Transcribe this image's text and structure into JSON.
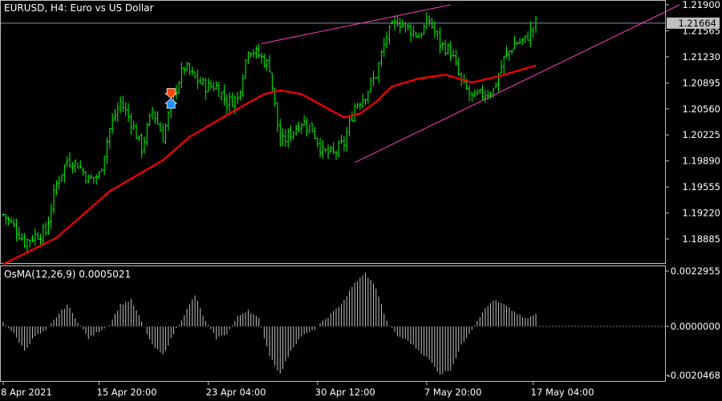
{
  "header": {
    "symbol": "EURUSD",
    "timeframe": "H4:",
    "description": "Euro vs US Dollar"
  },
  "indicator": {
    "label": "OsMA(12,26,9)",
    "value": "0.0005021"
  },
  "colors": {
    "background": "#000000",
    "candle": "#00ff00",
    "ma": "#ff0000",
    "trendline": "#ff3fbf",
    "grid": "#c0c0c0",
    "text": "#ffffff",
    "osma_bars": "#c0c0c0",
    "price_tag_bg": "#c0c0c0",
    "sell_arrow": "#ff4500",
    "buy_arrow": "#1e90ff"
  },
  "chart_data": [
    {
      "type": "candlestick",
      "title": "EURUSD, H4: Euro vs US Dollar",
      "ylim": [
        1.186,
        1.219
      ],
      "y_ticks": [
        "1.21900",
        "1.21565",
        "1.21230",
        "1.20895",
        "1.20560",
        "1.20225",
        "1.19890",
        "1.19555",
        "1.19220",
        "1.18885"
      ],
      "x_ticks": [
        "8 Apr 2021",
        "15 Apr 20:00",
        "23 Apr 04:00",
        "30 Apr 12:00",
        "7 May 20:00",
        "17 May 04:00"
      ],
      "current_price": "1.21664",
      "close_anchors": [
        [
          0,
          1.192
        ],
        [
          4,
          1.1905
        ],
        [
          8,
          1.1885
        ],
        [
          12,
          1.1893
        ],
        [
          16,
          1.1898
        ],
        [
          20,
          1.196
        ],
        [
          24,
          1.199
        ],
        [
          28,
          1.1985
        ],
        [
          32,
          1.1965
        ],
        [
          36,
          1.197
        ],
        [
          40,
          1.203
        ],
        [
          44,
          1.2065
        ],
        [
          48,
          1.204
        ],
        [
          52,
          1.2005
        ],
        [
          56,
          1.2055
        ],
        [
          60,
          1.202
        ],
        [
          64,
          1.2075
        ],
        [
          68,
          1.211
        ],
        [
          72,
          1.2095
        ],
        [
          76,
          1.2085
        ],
        [
          80,
          1.2085
        ],
        [
          84,
          1.2065
        ],
        [
          88,
          1.207
        ],
        [
          92,
          1.2135
        ],
        [
          96,
          1.2125
        ],
        [
          100,
          1.211
        ],
        [
          104,
          1.201
        ],
        [
          108,
          1.2025
        ],
        [
          112,
          1.204
        ],
        [
          116,
          1.203
        ],
        [
          120,
          1.2
        ],
        [
          124,
          1.1998
        ],
        [
          128,
          1.2012
        ],
        [
          132,
          1.206
        ],
        [
          136,
          1.2075
        ],
        [
          140,
          1.21
        ],
        [
          144,
          1.215
        ],
        [
          148,
          1.217
        ],
        [
          152,
          1.216
        ],
        [
          156,
          1.215
        ],
        [
          160,
          1.217
        ],
        [
          164,
          1.214
        ],
        [
          168,
          1.213
        ],
        [
          172,
          1.209
        ],
        [
          176,
          1.207
        ],
        [
          180,
          1.2075
        ],
        [
          184,
          1.208
        ],
        [
          188,
          1.212
        ],
        [
          192,
          1.214
        ],
        [
          196,
          1.2145
        ],
        [
          200,
          1.2166
        ]
      ],
      "moving_average": [
        [
          0,
          1.1856
        ],
        [
          20,
          1.189
        ],
        [
          30,
          1.192
        ],
        [
          40,
          1.195
        ],
        [
          50,
          1.197
        ],
        [
          60,
          1.199
        ],
        [
          70,
          1.202
        ],
        [
          80,
          1.204
        ],
        [
          90,
          1.206
        ],
        [
          98,
          1.2075
        ],
        [
          104,
          1.208
        ],
        [
          112,
          1.2075
        ],
        [
          120,
          1.206
        ],
        [
          128,
          1.2045
        ],
        [
          134,
          1.205
        ],
        [
          140,
          1.2065
        ],
        [
          146,
          1.2085
        ],
        [
          156,
          1.2095
        ],
        [
          166,
          1.21
        ],
        [
          176,
          1.209
        ],
        [
          186,
          1.2098
        ],
        [
          200,
          1.2112
        ]
      ],
      "trendlines": [
        {
          "from": [
            1.214,
            97
          ],
          "to": [
            1.219,
            168
          ]
        },
        {
          "from": [
            1.1987,
            132
          ],
          "to": [
            1.219,
            254
          ]
        }
      ],
      "signals": [
        {
          "type": "sell",
          "bar": 63,
          "price": 1.2076
        },
        {
          "type": "buy",
          "bar": 63,
          "price": 1.2063
        }
      ]
    },
    {
      "type": "bar",
      "title": "OsMA(12,26,9) 0.0005021",
      "ylim": [
        -0.0020468,
        0.0022955
      ],
      "y_ticks": [
        "0.0022955",
        "0.0000000",
        "-0.0020468"
      ],
      "waves": [
        [
          0,
          0.0002
        ],
        [
          4,
          -0.0003
        ],
        [
          8,
          -0.001
        ],
        [
          12,
          -0.0004
        ],
        [
          16,
          -0.0002
        ],
        [
          20,
          0.0004
        ],
        [
          24,
          0.0009
        ],
        [
          28,
          0.0002
        ],
        [
          32,
          -0.0005
        ],
        [
          36,
          -0.0002
        ],
        [
          40,
          0.0001
        ],
        [
          44,
          0.0009
        ],
        [
          48,
          0.0011
        ],
        [
          52,
          0.0002
        ],
        [
          56,
          -0.0008
        ],
        [
          60,
          -0.0012
        ],
        [
          64,
          -0.0003
        ],
        [
          68,
          0.0005
        ],
        [
          72,
          0.0013
        ],
        [
          76,
          0.0002
        ],
        [
          80,
          -0.0005
        ],
        [
          84,
          -0.0003
        ],
        [
          88,
          0.0004
        ],
        [
          92,
          0.0007
        ],
        [
          96,
          0.0003
        ],
        [
          100,
          -0.0012
        ],
        [
          104,
          -0.002
        ],
        [
          108,
          -0.001
        ],
        [
          112,
          -0.0004
        ],
        [
          116,
          -0.0002
        ],
        [
          120,
          0.0002
        ],
        [
          124,
          0.0006
        ],
        [
          128,
          0.0011
        ],
        [
          132,
          0.0018
        ],
        [
          136,
          0.0022
        ],
        [
          140,
          0.0016
        ],
        [
          144,
          0.0002
        ],
        [
          148,
          -0.0004
        ],
        [
          152,
          -0.0006
        ],
        [
          156,
          -0.001
        ],
        [
          160,
          -0.0014
        ],
        [
          164,
          -0.002
        ],
        [
          168,
          -0.0018
        ],
        [
          172,
          -0.0008
        ],
        [
          176,
          -0.0001
        ],
        [
          180,
          0.0006
        ],
        [
          184,
          0.0011
        ],
        [
          188,
          0.0009
        ],
        [
          192,
          0.0006
        ],
        [
          196,
          0.0003
        ],
        [
          200,
          0.0005
        ]
      ]
    }
  ]
}
